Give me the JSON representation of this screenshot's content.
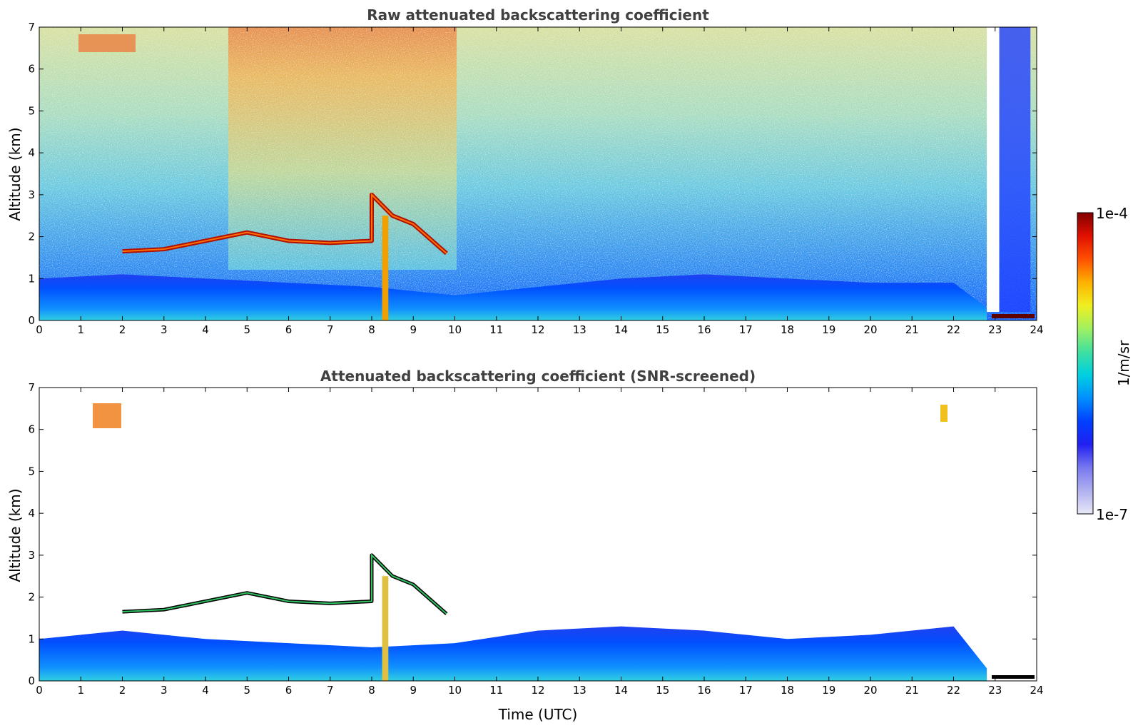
{
  "chart_data": [
    {
      "type": "heatmap",
      "title": "Raw attenuated backscattering coefficient",
      "xlabel": "",
      "ylabel": "Altitude (km)",
      "xlim": [
        0,
        24
      ],
      "ylim": [
        0,
        7
      ],
      "x_ticks": [
        "0",
        "1",
        "2",
        "3",
        "4",
        "5",
        "6",
        "7",
        "8",
        "9",
        "10",
        "11",
        "12",
        "13",
        "14",
        "15",
        "16",
        "17",
        "18",
        "19",
        "20",
        "21",
        "22",
        "23",
        "24"
      ],
      "y_ticks": [
        "0",
        "1",
        "2",
        "3",
        "4",
        "5",
        "6",
        "7"
      ],
      "features": {
        "boundary_layer_top_km": [
          [
            0,
            1.0
          ],
          [
            2,
            1.1
          ],
          [
            4,
            1.0
          ],
          [
            6,
            0.9
          ],
          [
            8,
            0.8
          ],
          [
            10,
            0.6
          ],
          [
            12,
            0.8
          ],
          [
            14,
            1.0
          ],
          [
            16,
            1.1
          ],
          [
            18,
            1.0
          ],
          [
            20,
            0.9
          ],
          [
            22,
            0.9
          ],
          [
            22.8,
            0.3
          ]
        ],
        "cloud_layer_km": [
          [
            2.0,
            1.65
          ],
          [
            3.0,
            1.7
          ],
          [
            4.0,
            1.9
          ],
          [
            5.0,
            2.1
          ],
          [
            6.0,
            1.9
          ],
          [
            7.0,
            1.85
          ],
          [
            8.0,
            1.9
          ],
          [
            8.0,
            3.0
          ],
          [
            8.5,
            2.5
          ],
          [
            9.0,
            2.3
          ],
          [
            9.8,
            1.6
          ]
        ],
        "precipitation_fall_hours": [
          8.3
        ],
        "instrument_gap_hours": [
          22.8,
          23.1
        ]
      }
    },
    {
      "type": "heatmap",
      "title": "Attenuated backscattering coefficient (SNR-screened)",
      "xlabel": "Time (UTC)",
      "ylabel": "Altitude (km)",
      "xlim": [
        0,
        24
      ],
      "ylim": [
        0,
        7
      ],
      "x_ticks": [
        "0",
        "1",
        "2",
        "3",
        "4",
        "5",
        "6",
        "7",
        "8",
        "9",
        "10",
        "11",
        "12",
        "13",
        "14",
        "15",
        "16",
        "17",
        "18",
        "19",
        "20",
        "21",
        "22",
        "23",
        "24"
      ],
      "y_ticks": [
        "0",
        "1",
        "2",
        "3",
        "4",
        "5",
        "6",
        "7"
      ],
      "features": {
        "boundary_layer_top_km": [
          [
            0,
            1.0
          ],
          [
            2,
            1.2
          ],
          [
            4,
            1.0
          ],
          [
            6,
            0.9
          ],
          [
            8,
            0.8
          ],
          [
            10,
            0.9
          ],
          [
            12,
            1.2
          ],
          [
            14,
            1.3
          ],
          [
            16,
            1.2
          ],
          [
            18,
            1.0
          ],
          [
            20,
            1.1
          ],
          [
            22,
            1.3
          ],
          [
            22.8,
            0.3
          ]
        ],
        "cloud_layer_km": [
          [
            2.0,
            1.65
          ],
          [
            3.0,
            1.7
          ],
          [
            4.0,
            1.9
          ],
          [
            5.0,
            2.1
          ],
          [
            6.0,
            1.9
          ],
          [
            7.0,
            1.85
          ],
          [
            8.0,
            1.9
          ],
          [
            8.0,
            3.0
          ],
          [
            8.5,
            2.5
          ],
          [
            9.0,
            2.3
          ],
          [
            9.8,
            1.6
          ]
        ]
      }
    }
  ],
  "colorbar": {
    "label": "1/m/sr",
    "max_label": "1e-4",
    "min_label": "1e-7",
    "scale": "log",
    "colormap": [
      "#e8e8f8",
      "#b0b0f0",
      "#7878f0",
      "#2020f0",
      "#0040ff",
      "#0090ff",
      "#00d0e0",
      "#40e0a0",
      "#a0f060",
      "#f0f020",
      "#ffb000",
      "#ff5000",
      "#e01000",
      "#800000"
    ]
  }
}
